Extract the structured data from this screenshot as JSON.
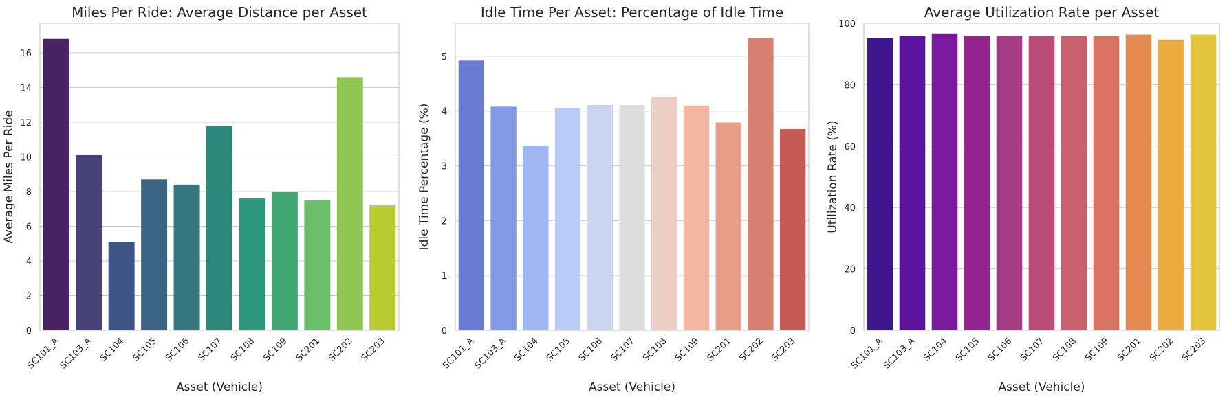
{
  "chart_data": [
    {
      "type": "bar",
      "title": "Miles Per Ride: Average Distance per Asset",
      "xlabel": "Asset (Vehicle)",
      "ylabel": "Average Miles Per Ride",
      "categories": [
        "SC101_A",
        "SC103_A",
        "SC104",
        "SC105",
        "SC106",
        "SC107",
        "SC108",
        "SC109",
        "SC201",
        "SC202",
        "SC203"
      ],
      "values": [
        16.8,
        10.1,
        5.1,
        8.7,
        8.4,
        11.8,
        7.6,
        8.0,
        7.5,
        14.6,
        7.2
      ],
      "ylim": [
        0,
        17.7
      ],
      "yticks": [
        0,
        2,
        4,
        6,
        8,
        10,
        12,
        14,
        16
      ],
      "grid": "horizontal",
      "colors": [
        "#482465",
        "#48417a",
        "#3e5485",
        "#3b6583",
        "#36777f",
        "#2d887c",
        "#2d977b",
        "#42a974",
        "#6bbf6a",
        "#90c553",
        "#b8cb31"
      ]
    },
    {
      "type": "bar",
      "title": "Idle Time Per Asset: Percentage of Idle Time",
      "xlabel": "Asset (Vehicle)",
      "ylabel": "Idle Time Percentage (%)",
      "categories": [
        "SC101_A",
        "SC103_A",
        "SC104",
        "SC105",
        "SC106",
        "SC107",
        "SC108",
        "SC109",
        "SC201",
        "SC202",
        "SC203"
      ],
      "values": [
        4.92,
        4.08,
        3.37,
        4.05,
        4.11,
        4.11,
        4.26,
        4.1,
        3.79,
        5.33,
        3.67
      ],
      "ylim": [
        0,
        5.6
      ],
      "yticks": [
        0,
        1,
        2,
        3,
        4,
        5
      ],
      "grid": "horizontal",
      "colors": [
        "#6a7bd3",
        "#8399e5",
        "#9eb6f1",
        "#b6cbf6",
        "#cad6ef",
        "#dddddd",
        "#eccfc3",
        "#f1b7a0",
        "#e8a08b",
        "#d8806f",
        "#c55a54"
      ]
    },
    {
      "type": "bar",
      "title": "Average Utilization Rate per Asset",
      "xlabel": "Asset (Vehicle)",
      "ylabel": "Utilization Rate (%)",
      "categories": [
        "SC101_A",
        "SC103_A",
        "SC104",
        "SC105",
        "SC106",
        "SC107",
        "SC108",
        "SC109",
        "SC201",
        "SC202",
        "SC203"
      ],
      "values": [
        95.1,
        95.8,
        96.7,
        95.8,
        95.8,
        95.8,
        95.8,
        95.8,
        96.3,
        94.7,
        96.3
      ],
      "ylim": [
        0,
        100
      ],
      "yticks": [
        0,
        20,
        40,
        60,
        80,
        100
      ],
      "grid": "horizontal",
      "colors": [
        "#3f188f",
        "#5b139d",
        "#781a9b",
        "#93238f",
        "#a63d84",
        "#b94d78",
        "#c9606d",
        "#d87461",
        "#e48b52",
        "#ebac41",
        "#e3c43a"
      ]
    }
  ]
}
